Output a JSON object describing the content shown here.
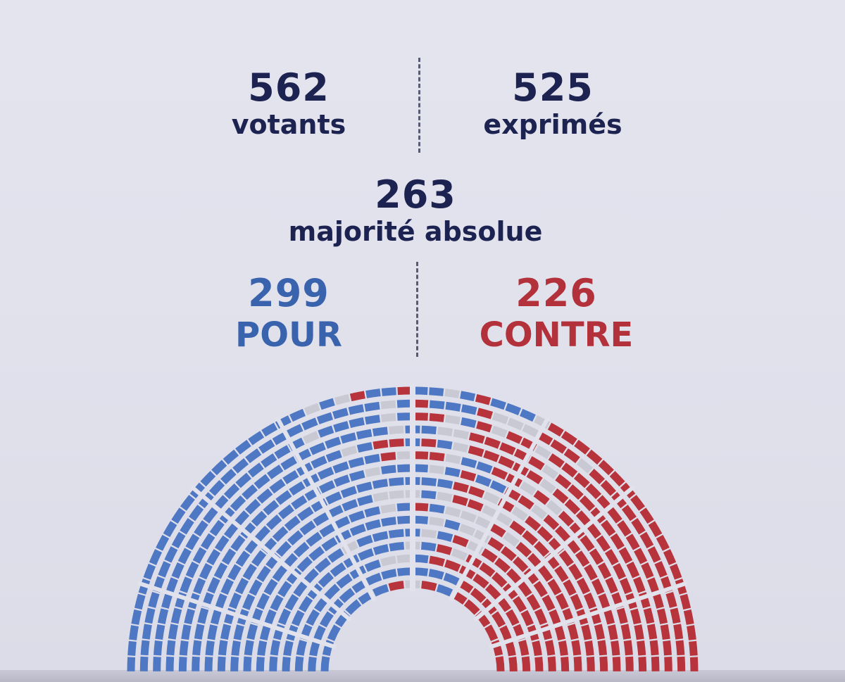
{
  "stats": {
    "votants": {
      "value": "562",
      "label": "votants"
    },
    "exprimes": {
      "value": "525",
      "label": "exprimés"
    },
    "majorite": {
      "value": "263",
      "label": "majorité absolue"
    },
    "pour": {
      "value": "299",
      "label": "POUR"
    },
    "contre": {
      "value": "226",
      "label": "CONTRE"
    }
  },
  "colors": {
    "pour": "#4f78c4",
    "contre": "#b8343c",
    "abstention": "#c9c9d3",
    "text": "#1d2350"
  },
  "hemicycle": {
    "total_seats": 577,
    "pour": 299,
    "contre": 226,
    "other": 52
  }
}
